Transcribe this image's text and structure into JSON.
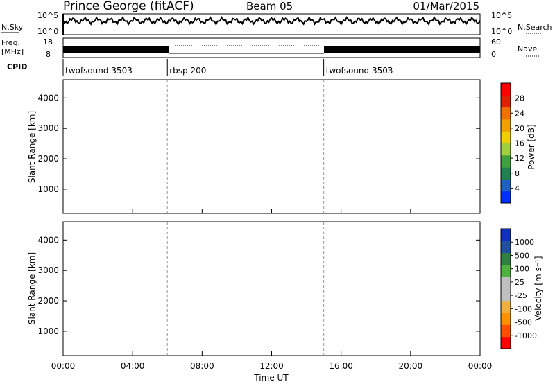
{
  "header": {
    "station": "Prince George (fitACF)",
    "beam": "Beam 05",
    "date": "01/Mar/2015"
  },
  "top_panel": {
    "nsky_label": "N.Sky",
    "nsearch_label": "N.Search",
    "freq_label_line1": "Freq.",
    "freq_label_line2": "[MHz]",
    "nave_label": "Nave",
    "cpid_label": "CPID",
    "left_ticks_noise": [
      "10^5",
      "10^0"
    ],
    "right_ticks_noise": [
      "10^5",
      "10^0"
    ],
    "left_ticks_freq": [
      "18",
      "8"
    ],
    "right_ticks_nave": [
      "60",
      "0"
    ]
  },
  "cpid_segments": [
    {
      "name": "twofsound 3503",
      "start": 0,
      "end": 6
    },
    {
      "name": "rbsp 200",
      "start": 6,
      "end": 15
    },
    {
      "name": "twofsound 3503",
      "start": 15,
      "end": 24
    }
  ],
  "colors": {
    "power": [
      "#0030ff",
      "#2060c0",
      "#208050",
      "#40a040",
      "#a0d040",
      "#f0d000",
      "#f0a000",
      "#f07000",
      "#e02000",
      "#ff0000"
    ],
    "velocity": [
      "#ff0000",
      "#ff5000",
      "#ff9000",
      "#f0b040",
      "#bfbfbf",
      "#bfbfbf",
      "#50b040",
      "#308040",
      "#2050a0",
      "#1030c0"
    ]
  },
  "chart_data": [
    {
      "type": "heatmap",
      "panel": "power",
      "ylabel": "Slant Range [km]",
      "x_range_hours": [
        0,
        24
      ],
      "ylim": [
        200,
        4600
      ],
      "yticks": [
        1000,
        2000,
        3000,
        4000
      ],
      "colorbar": {
        "label": "Power [dB]",
        "range": [
          0,
          32
        ],
        "ticks": [
          4,
          8,
          12,
          16,
          20,
          24,
          28
        ]
      }
    },
    {
      "type": "heatmap",
      "panel": "velocity",
      "ylabel": "Slant Range [km]",
      "x_range_hours": [
        0,
        24
      ],
      "ylim": [
        200,
        4600
      ],
      "yticks": [
        1000,
        2000,
        3000,
        4000
      ],
      "colorbar": {
        "label": "Velocity [m s⁻¹]",
        "ticks": [
          "1000",
          "500",
          "100",
          "25",
          "-25",
          "-100",
          "-500",
          "-1000"
        ]
      }
    }
  ],
  "x_axis": {
    "ticks": [
      "00:00",
      "04:00",
      "08:00",
      "12:00",
      "16:00",
      "20:00",
      "00:00"
    ],
    "label": "Time UT"
  }
}
